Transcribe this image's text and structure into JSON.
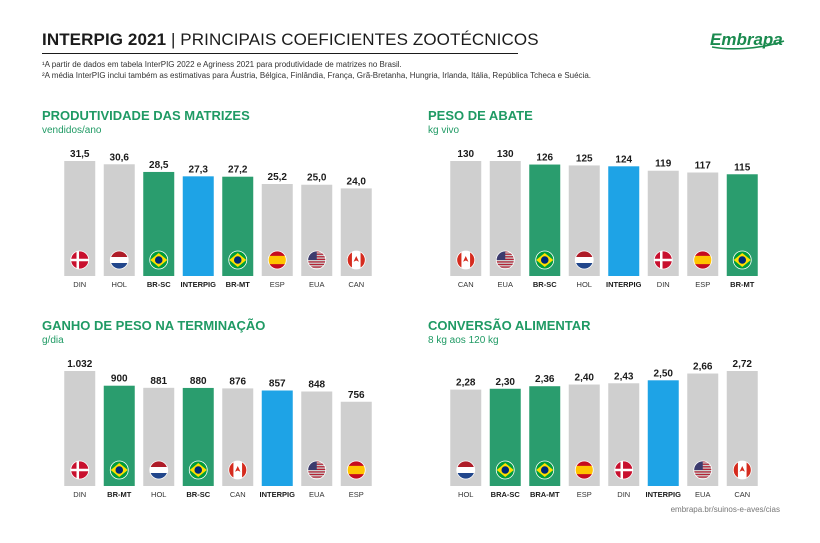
{
  "header": {
    "title_bold": "INTERPIG 2021",
    "title_rest": "| PRINCIPAIS COEFICIENTES ZOOTÉCNICOS",
    "note1": "¹A partir de dados em tabela InterPIG 2022 e Agriness 2021 para produtividade de matrizes no Brasil.",
    "note2": "²A média InterPIG inclui também as estimativas para Áustria, Bélgica, Finlândia, França, Grã-Bretanha, Hungria, Irlanda, Itália, República Tcheca e Suécia."
  },
  "logo": {
    "text": "Embrapa",
    "color": "#1a8a4e"
  },
  "footer": {
    "url": "embrapa.br/suinos-e-aves/cias"
  },
  "colors": {
    "gray": "#cfcfcf",
    "green": "#2a9d6e",
    "blue": "#1ea3e6",
    "title": "#1f9a64"
  },
  "chart_data": [
    {
      "type": "bar",
      "title": "PRODUTIVIDADE DAS MATRIZES",
      "subtitle": "vendidos/ano",
      "ylim": [
        0,
        31.5
      ],
      "categories": [
        "DIN",
        "HOL",
        "BR-SC",
        "INTERPIG",
        "BR-MT",
        "ESP",
        "EUA",
        "CAN"
      ],
      "values": [
        31.5,
        30.6,
        28.5,
        27.3,
        27.2,
        25.2,
        25.0,
        24.0
      ],
      "value_labels": [
        "31,5",
        "30,6",
        "28,5",
        "27,3",
        "27,2",
        "25,2",
        "25,0",
        "24,0"
      ],
      "flags": [
        "dk",
        "nl",
        "br",
        "",
        "br",
        "es",
        "us",
        "ca"
      ],
      "bar_colors": [
        "gray",
        "gray",
        "green",
        "blue",
        "green",
        "gray",
        "gray",
        "gray"
      ]
    },
    {
      "type": "bar",
      "title": "PESO DE ABATE",
      "subtitle": "kg vivo",
      "ylim": [
        0,
        130
      ],
      "categories": [
        "CAN",
        "EUA",
        "BR-SC",
        "HOL",
        "INTERPIG",
        "DIN",
        "ESP",
        "BR-MT"
      ],
      "values": [
        130,
        130,
        126,
        125,
        124,
        119,
        117,
        115
      ],
      "value_labels": [
        "130",
        "130",
        "126",
        "125",
        "124",
        "119",
        "117",
        "115"
      ],
      "flags": [
        "ca",
        "us",
        "br",
        "nl",
        "",
        "dk",
        "es",
        "br"
      ],
      "bar_colors": [
        "gray",
        "gray",
        "green",
        "gray",
        "blue",
        "gray",
        "gray",
        "green"
      ]
    },
    {
      "type": "bar",
      "title": "GANHO DE PESO NA TERMINAÇÃO",
      "subtitle": "g/dia",
      "ylim": [
        0,
        1032
      ],
      "categories": [
        "DIN",
        "BR-MT",
        "HOL",
        "BR-SC",
        "CAN",
        "INTERPIG",
        "EUA",
        "ESP"
      ],
      "values": [
        1032,
        900,
        881,
        880,
        876,
        857,
        848,
        756
      ],
      "value_labels": [
        "1.032",
        "900",
        "881",
        "880",
        "876",
        "857",
        "848",
        "756"
      ],
      "flags": [
        "dk",
        "br",
        "nl",
        "br",
        "ca",
        "",
        "us",
        "es"
      ],
      "bar_colors": [
        "gray",
        "green",
        "gray",
        "green",
        "gray",
        "blue",
        "gray",
        "gray"
      ]
    },
    {
      "type": "bar",
      "title": "CONVERSÃO ALIMENTAR",
      "subtitle": "8 kg aos 120 kg",
      "ylim": [
        0,
        2.72
      ],
      "categories": [
        "HOL",
        "BRA-SC",
        "BRA-MT",
        "ESP",
        "DIN",
        "INTERPIG",
        "EUA",
        "CAN"
      ],
      "values": [
        2.28,
        2.3,
        2.36,
        2.4,
        2.43,
        2.5,
        2.66,
        2.72
      ],
      "value_labels": [
        "2,28",
        "2,30",
        "2,36",
        "2,40",
        "2,43",
        "2,50",
        "2,66",
        "2,72"
      ],
      "flags": [
        "nl",
        "br",
        "br",
        "es",
        "dk",
        "",
        "us",
        "ca"
      ],
      "bar_colors": [
        "gray",
        "green",
        "green",
        "gray",
        "gray",
        "blue",
        "gray",
        "gray"
      ]
    }
  ]
}
